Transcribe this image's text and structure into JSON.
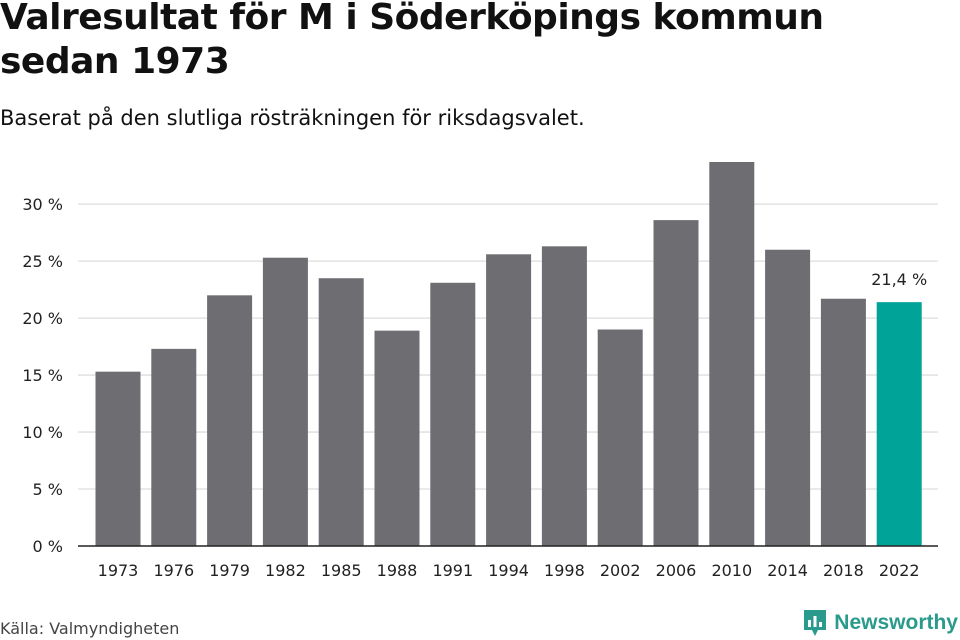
{
  "title": "Valresultat för M i Söderköpings kommun sedan 1973",
  "subtitle": "Baserat på den slutliga rösträkningen för riksdagsvalet.",
  "source": "Källa: Valmyndigheten",
  "brand": "Newsworthy",
  "colors": {
    "bar": "#6e6d72",
    "highlight": "#00a398",
    "grid": "#dddddd",
    "axis": "#222222",
    "brand": "#2a9a8c"
  },
  "chart_data": {
    "type": "bar",
    "title": "Valresultat för M i Söderköpings kommun sedan 1973",
    "subtitle": "Baserat på den slutliga rösträkningen för riksdagsvalet.",
    "xlabel": "",
    "ylabel": "",
    "categories": [
      "1973",
      "1976",
      "1979",
      "1982",
      "1985",
      "1988",
      "1991",
      "1994",
      "1998",
      "2002",
      "2006",
      "2010",
      "2014",
      "2018",
      "2022"
    ],
    "values": [
      15.3,
      17.3,
      22.0,
      25.3,
      23.5,
      18.9,
      23.1,
      25.6,
      26.3,
      19.0,
      28.6,
      33.7,
      26.0,
      21.7,
      21.4
    ],
    "ylim": [
      0,
      33.7
    ],
    "yticks": [
      0,
      5,
      10,
      15,
      20,
      25,
      30
    ],
    "ytick_labels": [
      "0 %",
      "5 %",
      "10 %",
      "15 %",
      "20 %",
      "25 %",
      "30 %"
    ],
    "highlight_index": 14,
    "annotations": [
      {
        "category": "2022",
        "text": "21,4 %"
      }
    ],
    "grid": true,
    "legend": "none"
  }
}
